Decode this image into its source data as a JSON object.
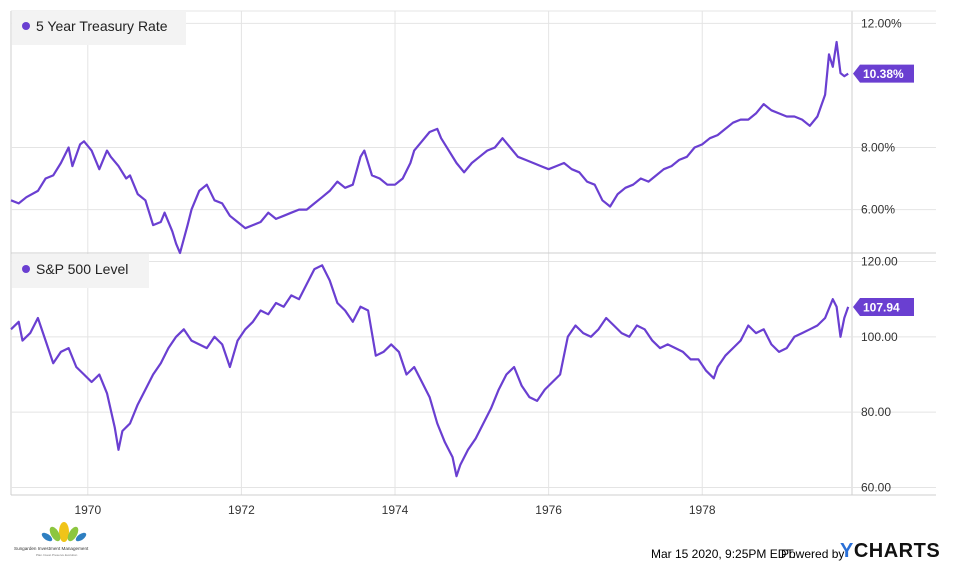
{
  "chart_data": [
    {
      "type": "line",
      "legend": "5 Year Treasury Rate",
      "last_value_label": "10.38%",
      "color": "#6a3fd1",
      "xlim": [
        1969.0,
        1979.95
      ],
      "ylim": [
        4.6,
        12.4
      ],
      "y_ticks": [
        {
          "v": 6.0,
          "label": "6.00%"
        },
        {
          "v": 8.0,
          "label": "8.00%"
        },
        {
          "v": 12.0,
          "label": "12.00%"
        }
      ],
      "x": [
        1969.0,
        1969.1,
        1969.2,
        1969.35,
        1969.45,
        1969.55,
        1969.65,
        1969.75,
        1969.8,
        1969.9,
        1969.95,
        1970.05,
        1970.15,
        1970.25,
        1970.3,
        1970.4,
        1970.5,
        1970.55,
        1970.65,
        1970.75,
        1970.85,
        1970.95,
        1971.0,
        1971.1,
        1971.15,
        1971.2,
        1971.3,
        1971.35,
        1971.45,
        1971.55,
        1971.65,
        1971.75,
        1971.85,
        1971.95,
        1972.05,
        1972.15,
        1972.25,
        1972.35,
        1972.45,
        1972.55,
        1972.65,
        1972.75,
        1972.85,
        1972.95,
        1973.05,
        1973.15,
        1973.25,
        1973.35,
        1973.45,
        1973.55,
        1973.6,
        1973.7,
        1973.8,
        1973.9,
        1974.0,
        1974.1,
        1974.2,
        1974.25,
        1974.35,
        1974.45,
        1974.55,
        1974.6,
        1974.7,
        1974.8,
        1974.9,
        1975.0,
        1975.1,
        1975.2,
        1975.3,
        1975.4,
        1975.5,
        1975.6,
        1975.7,
        1975.8,
        1975.9,
        1976.0,
        1976.1,
        1976.2,
        1976.3,
        1976.4,
        1976.5,
        1976.6,
        1976.7,
        1976.8,
        1976.9,
        1977.0,
        1977.1,
        1977.2,
        1977.3,
        1977.4,
        1977.5,
        1977.6,
        1977.7,
        1977.8,
        1977.9,
        1978.0,
        1978.1,
        1978.2,
        1978.3,
        1978.4,
        1978.5,
        1978.6,
        1978.7,
        1978.8,
        1978.9,
        1979.0,
        1979.1,
        1979.2,
        1979.3,
        1979.4,
        1979.5,
        1979.6,
        1979.65,
        1979.7,
        1979.75,
        1979.8,
        1979.85,
        1979.9
      ],
      "values": [
        6.3,
        6.2,
        6.4,
        6.6,
        7.0,
        7.1,
        7.5,
        8.0,
        7.4,
        8.1,
        8.2,
        7.9,
        7.3,
        7.9,
        7.7,
        7.4,
        7.0,
        7.1,
        6.5,
        6.3,
        5.5,
        5.6,
        5.9,
        5.3,
        4.9,
        4.6,
        5.5,
        6.0,
        6.6,
        6.8,
        6.3,
        6.2,
        5.8,
        5.6,
        5.4,
        5.5,
        5.6,
        5.9,
        5.7,
        5.8,
        5.9,
        6.0,
        6.0,
        6.2,
        6.4,
        6.6,
        6.9,
        6.7,
        6.8,
        7.7,
        7.9,
        7.1,
        7.0,
        6.8,
        6.8,
        7.0,
        7.5,
        7.9,
        8.2,
        8.5,
        8.6,
        8.3,
        7.9,
        7.5,
        7.2,
        7.5,
        7.7,
        7.9,
        8.0,
        8.3,
        8.0,
        7.7,
        7.6,
        7.5,
        7.4,
        7.3,
        7.4,
        7.5,
        7.3,
        7.2,
        6.9,
        6.8,
        6.3,
        6.1,
        6.5,
        6.7,
        6.8,
        7.0,
        6.9,
        7.1,
        7.3,
        7.4,
        7.6,
        7.7,
        8.0,
        8.1,
        8.3,
        8.4,
        8.6,
        8.8,
        8.9,
        8.9,
        9.1,
        9.4,
        9.2,
        9.1,
        9.0,
        9.0,
        8.9,
        8.7,
        9.0,
        9.7,
        11.0,
        10.6,
        11.4,
        10.4,
        10.3,
        10.38
      ]
    },
    {
      "type": "line",
      "legend": "S&P 500 Level",
      "last_value_label": "107.94",
      "color": "#6a3fd1",
      "xlim": [
        1969.0,
        1979.95
      ],
      "ylim": [
        58,
        122
      ],
      "y_ticks": [
        {
          "v": 60,
          "label": "60.00"
        },
        {
          "v": 80,
          "label": "80.00"
        },
        {
          "v": 100,
          "label": "100.00"
        },
        {
          "v": 120,
          "label": "120.00"
        }
      ],
      "x": [
        1969.0,
        1969.1,
        1969.15,
        1969.25,
        1969.35,
        1969.45,
        1969.55,
        1969.65,
        1969.75,
        1969.85,
        1969.95,
        1970.05,
        1970.15,
        1970.25,
        1970.35,
        1970.4,
        1970.45,
        1970.55,
        1970.65,
        1970.75,
        1970.85,
        1970.95,
        1971.05,
        1971.15,
        1971.25,
        1971.35,
        1971.45,
        1971.55,
        1971.65,
        1971.75,
        1971.85,
        1971.95,
        1972.05,
        1972.15,
        1972.25,
        1972.35,
        1972.45,
        1972.55,
        1972.65,
        1972.75,
        1972.85,
        1972.95,
        1973.05,
        1973.15,
        1973.25,
        1973.35,
        1973.45,
        1973.55,
        1973.65,
        1973.75,
        1973.85,
        1973.95,
        1974.05,
        1974.15,
        1974.25,
        1974.35,
        1974.45,
        1974.55,
        1974.65,
        1974.75,
        1974.8,
        1974.85,
        1974.95,
        1975.05,
        1975.15,
        1975.25,
        1975.35,
        1975.45,
        1975.55,
        1975.65,
        1975.75,
        1975.85,
        1975.95,
        1976.05,
        1976.15,
        1976.25,
        1976.35,
        1976.45,
        1976.55,
        1976.65,
        1976.75,
        1976.85,
        1976.95,
        1977.05,
        1977.15,
        1977.25,
        1977.35,
        1977.45,
        1977.55,
        1977.65,
        1977.75,
        1977.85,
        1977.95,
        1978.05,
        1978.15,
        1978.2,
        1978.3,
        1978.4,
        1978.5,
        1978.6,
        1978.7,
        1978.8,
        1978.9,
        1979.0,
        1979.1,
        1979.2,
        1979.3,
        1979.4,
        1979.5,
        1979.6,
        1979.7,
        1979.75,
        1979.8,
        1979.85,
        1979.9
      ],
      "values": [
        102,
        104,
        99,
        101,
        105,
        99,
        93,
        96,
        97,
        92,
        90,
        88,
        90,
        85,
        76,
        70,
        75,
        77,
        82,
        86,
        90,
        93,
        97,
        100,
        102,
        99,
        98,
        97,
        100,
        98,
        92,
        99,
        102,
        104,
        107,
        106,
        109,
        108,
        111,
        110,
        114,
        118,
        119,
        115,
        109,
        107,
        104,
        108,
        107,
        95,
        96,
        98,
        96,
        90,
        92,
        88,
        84,
        77,
        72,
        68,
        63,
        66,
        70,
        73,
        77,
        81,
        86,
        90,
        92,
        87,
        84,
        83,
        86,
        88,
        90,
        100,
        103,
        101,
        100,
        102,
        105,
        103,
        101,
        100,
        103,
        102,
        99,
        97,
        98,
        97,
        96,
        94,
        94,
        91,
        89,
        92,
        95,
        97,
        99,
        103,
        101,
        102,
        98,
        96,
        97,
        100,
        101,
        102,
        103,
        105,
        110,
        108,
        100,
        105,
        107.94
      ]
    }
  ],
  "x_ticks": [
    {
      "v": 1970,
      "label": "1970"
    },
    {
      "v": 1972,
      "label": "1972"
    },
    {
      "v": 1974,
      "label": "1974"
    },
    {
      "v": 1976,
      "label": "1976"
    },
    {
      "v": 1978,
      "label": "1978"
    }
  ],
  "footer": {
    "timestamp": "Mar 15 2020, 9:25PM EDT.",
    "powered_by": "Powered by",
    "brand": "YCHARTS"
  },
  "logo": {
    "name": "Sungarden Investment Management",
    "tagline": "Plan·Invest·Preserve·Evolution"
  }
}
